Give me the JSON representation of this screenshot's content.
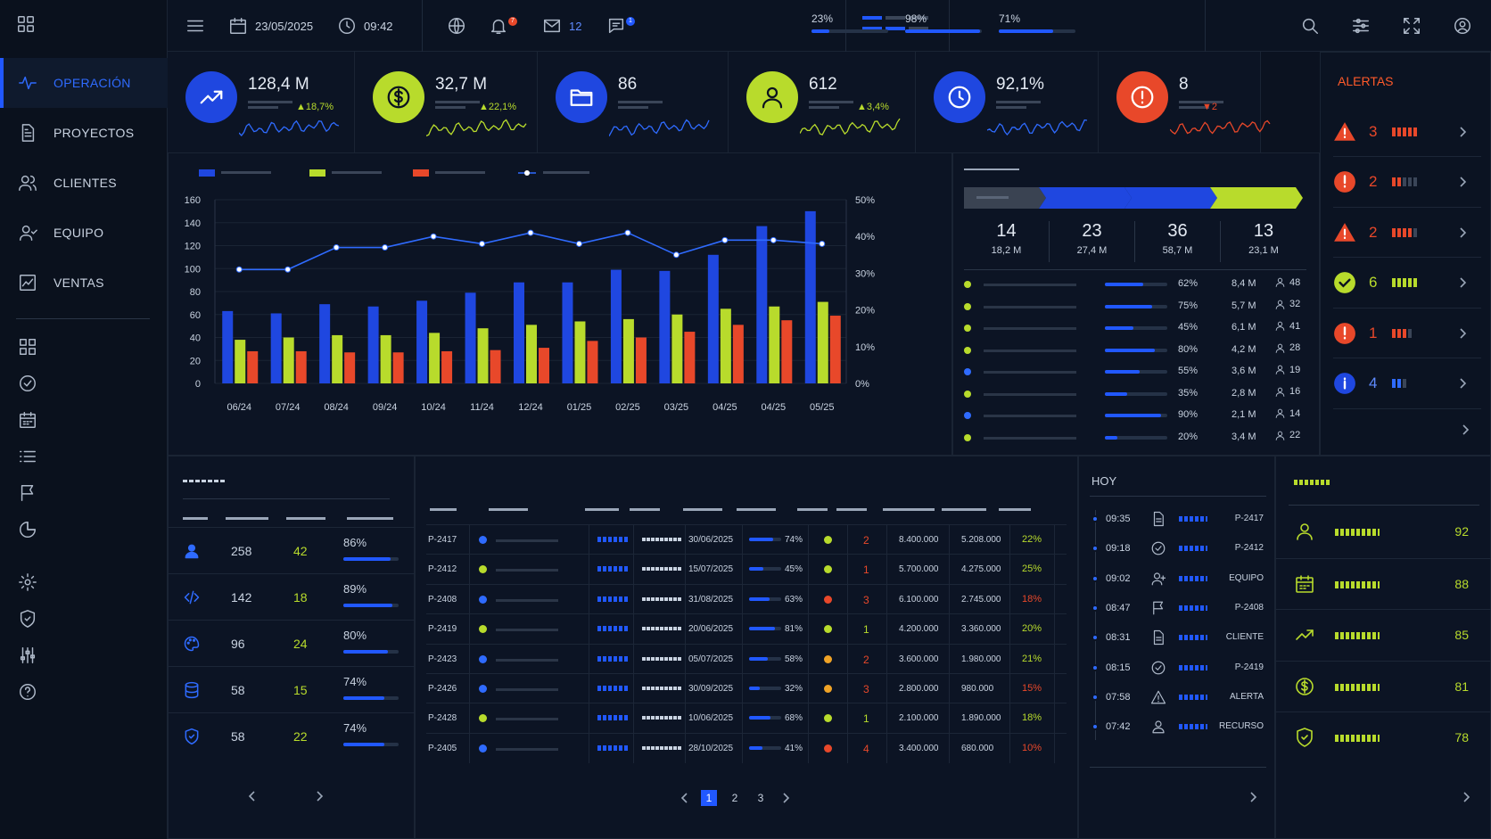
{
  "topbar": {
    "date": "23/05/2025",
    "time": "09:42",
    "notif_count": "7",
    "mail_count": "12",
    "chat_count": "1",
    "progress": [
      {
        "label": "23%",
        "value": 0.23
      },
      {
        "label": "98%",
        "value": 0.98
      },
      {
        "label": "71%",
        "value": 0.71
      }
    ]
  },
  "sidebar": {
    "items": [
      {
        "label": "OPERACIÓN",
        "icon": "pulse-icon",
        "active": true
      },
      {
        "label": "PROYECTOS",
        "icon": "document-icon"
      },
      {
        "label": "CLIENTES",
        "icon": "users-icon"
      },
      {
        "label": "EQUIPO",
        "icon": "team-icon"
      },
      {
        "label": "VENTAS",
        "icon": "chart-box-icon"
      }
    ],
    "icons": [
      "grid-icon",
      "check-circle-icon",
      "calendar-icon",
      "list-icon",
      "flag-icon",
      "pie-icon",
      "gear-icon",
      "shield-icon",
      "sliders-icon",
      "help-icon"
    ]
  },
  "kpis": [
    {
      "value": "128,4 M",
      "change": "▲18,7%",
      "color": "#1f47e0",
      "icon": "trend-up-icon",
      "spark": "#2f6bff"
    },
    {
      "value": "32,7 M",
      "change": "▲22,1%",
      "color": "#b8db2c",
      "icon": "dollar-icon",
      "spark": "#b8db2c"
    },
    {
      "value": "86",
      "change": "",
      "color": "#1f47e0",
      "icon": "folder-icon",
      "spark": "#2f6bff"
    },
    {
      "value": "612",
      "change": "▲3,4%",
      "color": "#b8db2c",
      "icon": "user-icon",
      "spark": "#b8db2c"
    },
    {
      "value": "92,1%",
      "change": "",
      "color": "#1f47e0",
      "icon": "clock-icon",
      "spark": "#2f6bff"
    },
    {
      "value": "8",
      "change": "▼2",
      "color": "#e8482a",
      "icon": "alert-icon",
      "spark": "#e8482a"
    }
  ],
  "chart_data": {
    "type": "bar",
    "categories": [
      "06/24",
      "07/24",
      "08/24",
      "09/24",
      "10/24",
      "11/24",
      "12/24",
      "01/25",
      "02/25",
      "03/25",
      "04/25",
      "04/25",
      "05/25"
    ],
    "series": [
      {
        "values": [
          63,
          61,
          69,
          67,
          72,
          79,
          88,
          88,
          99,
          98,
          112,
          137,
          150
        ],
        "color": "#1f47e0"
      },
      {
        "values": [
          38,
          40,
          42,
          42,
          44,
          48,
          51,
          54,
          56,
          60,
          65,
          67,
          71
        ],
        "color": "#b8db2c"
      },
      {
        "values": [
          28,
          28,
          27,
          27,
          28,
          29,
          31,
          37,
          40,
          45,
          51,
          55,
          59
        ],
        "color": "#e8482a"
      },
      {
        "values": [
          31,
          31,
          37,
          37,
          40,
          38,
          41,
          38,
          41,
          35,
          39,
          39,
          38
        ],
        "color": "#2f6bff",
        "type": "line",
        "axis": "right"
      }
    ],
    "ylim": [
      0,
      160
    ],
    "yticks": [
      "160",
      "140",
      "120",
      "100",
      "80",
      "60",
      "40",
      "20",
      "0"
    ],
    "y2lim": [
      0,
      50
    ],
    "y2ticks": [
      "50%",
      "40%",
      "30%",
      "20%",
      "10%",
      "0%"
    ]
  },
  "pipeline": {
    "stages": [
      {
        "count": "14",
        "amount": "18,2 M",
        "color": "#3a4352"
      },
      {
        "count": "23",
        "amount": "27,4 M",
        "color": "#1f47e0"
      },
      {
        "count": "36",
        "amount": "58,7 M",
        "color": "#1f47e0"
      },
      {
        "count": "13",
        "amount": "23,1 M",
        "color": "#b8db2c"
      }
    ],
    "rows": [
      {
        "dot": "#b8db2c",
        "pct": "62%",
        "p": 0.62,
        "amount": "8,4 M",
        "people": "48"
      },
      {
        "dot": "#b8db2c",
        "pct": "75%",
        "p": 0.75,
        "amount": "5,7 M",
        "people": "32"
      },
      {
        "dot": "#b8db2c",
        "pct": "45%",
        "p": 0.45,
        "amount": "6,1 M",
        "people": "41"
      },
      {
        "dot": "#b8db2c",
        "pct": "80%",
        "p": 0.8,
        "amount": "4,2 M",
        "people": "28"
      },
      {
        "dot": "#2f6bff",
        "pct": "55%",
        "p": 0.55,
        "amount": "3,6 M",
        "people": "19"
      },
      {
        "dot": "#b8db2c",
        "pct": "35%",
        "p": 0.35,
        "amount": "2,8 M",
        "people": "16"
      },
      {
        "dot": "#2f6bff",
        "pct": "90%",
        "p": 0.9,
        "amount": "2,1 M",
        "people": "14"
      },
      {
        "dot": "#b8db2c",
        "pct": "20%",
        "p": 0.2,
        "amount": "3,4 M",
        "people": "22"
      }
    ]
  },
  "alerts": {
    "title": "ALERTAS",
    "rows": [
      {
        "icon": "warning-triangle-icon",
        "color": "#e8482a",
        "count": "3",
        "bars": 5,
        "lit": 5,
        "bar_color": "#e8482a"
      },
      {
        "icon": "error-circle-icon",
        "color": "#e8482a",
        "count": "2",
        "bars": 5,
        "lit": 2,
        "bar_color": "#e8482a"
      },
      {
        "icon": "warning-triangle-icon",
        "color": "#e8482a",
        "count": "2",
        "bars": 5,
        "lit": 4,
        "bar_color": "#e8482a"
      },
      {
        "icon": "check-circle-icon",
        "color": "#b8db2c",
        "count": "6",
        "bars": 5,
        "lit": 5,
        "bar_color": "#b8db2c"
      },
      {
        "icon": "error-circle-icon",
        "color": "#e8482a",
        "count": "1",
        "bars": 4,
        "lit": 3,
        "bar_color": "#e8482a"
      },
      {
        "icon": "info-circle-icon",
        "color": "#1f47e0",
        "count": "4",
        "bars": 3,
        "lit": 2,
        "bar_color": "#2f6bff"
      }
    ]
  },
  "team": {
    "rows": [
      {
        "icon": "person-icon",
        "a": "258",
        "b": "42",
        "pct": "86%",
        "p": 0.86
      },
      {
        "icon": "code-icon",
        "a": "142",
        "b": "18",
        "pct": "89%",
        "p": 0.89
      },
      {
        "icon": "palette-icon",
        "a": "96",
        "b": "24",
        "pct": "80%",
        "p": 0.8
      },
      {
        "icon": "database-icon",
        "a": "58",
        "b": "15",
        "pct": "74%",
        "p": 0.74
      },
      {
        "icon": "shield-icon",
        "a": "58",
        "b": "22",
        "pct": "74%",
        "p": 0.74
      }
    ]
  },
  "projects": {
    "rows": [
      {
        "id": "P-2417",
        "dot": "#2f6bff",
        "date": "30/06/2025",
        "pct": "74%",
        "p": 0.74,
        "status": "#b8db2c",
        "n": "2",
        "n_color": "#e8482a",
        "v1": "8.400.000",
        "v2": "5.208.000",
        "m": "22%",
        "m_color": "#b8db2c"
      },
      {
        "id": "P-2412",
        "dot": "#b8db2c",
        "date": "15/07/2025",
        "pct": "45%",
        "p": 0.45,
        "status": "#b8db2c",
        "n": "1",
        "n_color": "#e8482a",
        "v1": "5.700.000",
        "v2": "4.275.000",
        "m": "25%",
        "m_color": "#b8db2c"
      },
      {
        "id": "P-2408",
        "dot": "#2f6bff",
        "date": "31/08/2025",
        "pct": "63%",
        "p": 0.63,
        "status": "#e8482a",
        "n": "3",
        "n_color": "#e8482a",
        "v1": "6.100.000",
        "v2": "2.745.000",
        "m": "18%",
        "m_color": "#e8482a"
      },
      {
        "id": "P-2419",
        "dot": "#b8db2c",
        "date": "20/06/2025",
        "pct": "81%",
        "p": 0.81,
        "status": "#b8db2c",
        "n": "1",
        "n_color": "#b8db2c",
        "v1": "4.200.000",
        "v2": "3.360.000",
        "m": "20%",
        "m_color": "#b8db2c"
      },
      {
        "id": "P-2423",
        "dot": "#2f6bff",
        "date": "05/07/2025",
        "pct": "58%",
        "p": 0.58,
        "status": "#f0a326",
        "n": "2",
        "n_color": "#e8482a",
        "v1": "3.600.000",
        "v2": "1.980.000",
        "m": "21%",
        "m_color": "#b8db2c"
      },
      {
        "id": "P-2426",
        "dot": "#2f6bff",
        "date": "30/09/2025",
        "pct": "32%",
        "p": 0.32,
        "status": "#f0a326",
        "n": "3",
        "n_color": "#e8482a",
        "v1": "2.800.000",
        "v2": "980.000",
        "m": "15%",
        "m_color": "#e8482a"
      },
      {
        "id": "P-2428",
        "dot": "#b8db2c",
        "date": "10/06/2025",
        "pct": "68%",
        "p": 0.68,
        "status": "#b8db2c",
        "n": "1",
        "n_color": "#b8db2c",
        "v1": "2.100.000",
        "v2": "1.890.000",
        "m": "18%",
        "m_color": "#b8db2c"
      },
      {
        "id": "P-2405",
        "dot": "#2f6bff",
        "date": "28/10/2025",
        "pct": "41%",
        "p": 0.41,
        "status": "#e8482a",
        "n": "4",
        "n_color": "#e8482a",
        "v1": "3.400.000",
        "v2": "680.000",
        "m": "10%",
        "m_color": "#e8482a"
      }
    ],
    "pages": [
      "1",
      "2",
      "3"
    ]
  },
  "timeline": {
    "title": "HOY",
    "rows": [
      {
        "time": "09:35",
        "icon": "document-icon",
        "label": "P-2417"
      },
      {
        "time": "09:18",
        "icon": "check-circle-icon",
        "label": "P-2412"
      },
      {
        "time": "09:02",
        "icon": "user-add-icon",
        "label": "EQUIPO"
      },
      {
        "time": "08:47",
        "icon": "flag-icon",
        "label": "P-2408"
      },
      {
        "time": "08:31",
        "icon": "document-icon",
        "label": "CLIENTE"
      },
      {
        "time": "08:15",
        "icon": "check-circle-icon",
        "label": "P-2419"
      },
      {
        "time": "07:58",
        "icon": "warning-icon",
        "label": "ALERTA"
      },
      {
        "time": "07:42",
        "icon": "person-icon",
        "label": "RECURSO"
      }
    ]
  },
  "scores": {
    "rows": [
      {
        "icon": "user-icon",
        "value": "92"
      },
      {
        "icon": "calendar-icon",
        "value": "88"
      },
      {
        "icon": "trend-up-icon",
        "value": "85"
      },
      {
        "icon": "dollar-icon",
        "value": "81"
      },
      {
        "icon": "shield-icon",
        "value": "78"
      }
    ]
  }
}
